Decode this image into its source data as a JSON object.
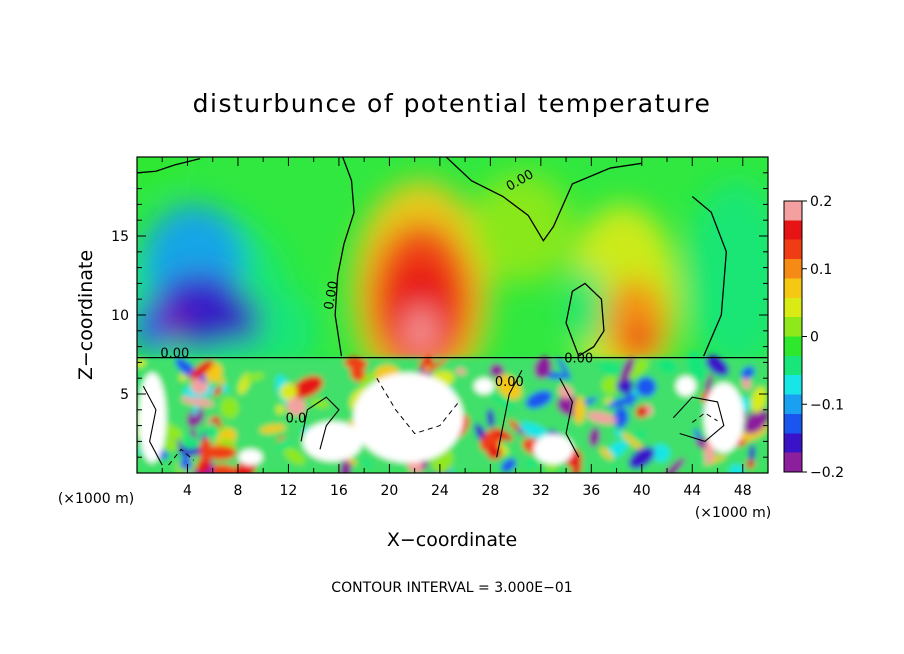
{
  "chart_data": {
    "type": "heatmap",
    "title": "disturbunce of potential temperature",
    "xlabel": "X−coordinate",
    "ylabel": "Z−coordinate",
    "x_unit_left": "(×1000 m)",
    "x_unit_right": "(×1000 m)",
    "footer": "CONTOUR INTERVAL = 3.000E−01",
    "xlim": [
      0,
      50
    ],
    "ylim": [
      0,
      20
    ],
    "x_ticks": [
      4,
      8,
      12,
      16,
      20,
      24,
      28,
      32,
      36,
      40,
      44,
      48
    ],
    "x_tick_labels": [
      "4",
      "8",
      "12",
      "16",
      "20",
      "24",
      "28",
      "32",
      "36",
      "40",
      "44",
      "48"
    ],
    "y_ticks": [
      5,
      10,
      15
    ],
    "y_tick_labels": [
      "5",
      "10",
      "15"
    ],
    "colorbar": {
      "range": [
        -0.2,
        0.2
      ],
      "ticks": [
        0.2,
        0.1,
        0,
        -0.1,
        -0.2
      ],
      "tick_labels": [
        "0.2",
        "0.1",
        "0",
        "−0.1",
        "−0.2"
      ],
      "colors": [
        "#8c1f9c",
        "#3a13c8",
        "#1a55f0",
        "#1aa0f0",
        "#18e6e6",
        "#18e67a",
        "#2ee82e",
        "#8fe81a",
        "#d9ea14",
        "#f5c814",
        "#f58a14",
        "#f03c14",
        "#e61414",
        "#f5a0a0"
      ]
    },
    "contour_labels": [
      {
        "text": "0.00",
        "x": 30.5,
        "y": 18.3
      },
      {
        "text": "0.00",
        "x": 15.7,
        "y": 11.2
      },
      {
        "text": "0.00",
        "x": 3.0,
        "y": 7.3
      },
      {
        "text": "0.00",
        "x": 29.5,
        "y": 5.5
      },
      {
        "text": "0.00",
        "x": 35.0,
        "y": 7.0
      },
      {
        "text": "0.0",
        "x": 12.6,
        "y": 3.2
      }
    ]
  }
}
